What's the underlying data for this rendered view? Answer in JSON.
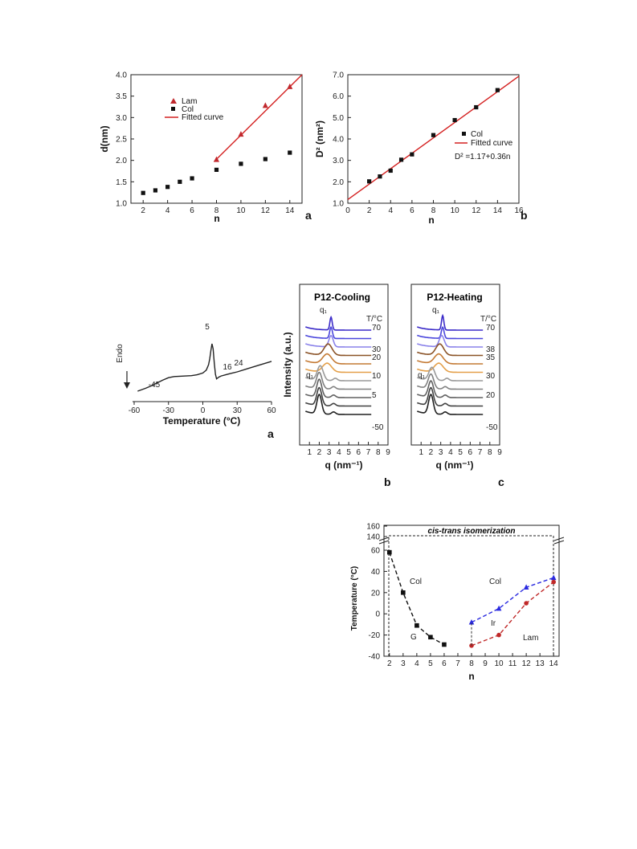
{
  "colors": {
    "lam": "#c0282d",
    "col": "#111111",
    "fit": "#d42020",
    "blue": "#2a2ae0",
    "red": "#c02828",
    "grid": "#555555"
  },
  "chart_data": [
    {
      "id": "fig1a",
      "type": "scatter",
      "panel": "a",
      "xlabel": "n",
      "ylabel": "d(nm)",
      "xlim": [
        1,
        15
      ],
      "ylim": [
        1.0,
        4.0
      ],
      "xticks": [
        2,
        4,
        6,
        8,
        10,
        12,
        14
      ],
      "yticks": [
        "1.0",
        "1.5",
        "2.0",
        "2.5",
        "3.0",
        "3.5",
        "4.0"
      ],
      "legend": {
        "position": "top-left",
        "entries": [
          "Lam",
          "Col",
          "Fitted curve"
        ]
      },
      "series": [
        {
          "name": "Lam",
          "marker": "triangle",
          "x": [
            8,
            10,
            12,
            14
          ],
          "y": [
            2.02,
            2.61,
            3.28,
            3.72
          ]
        },
        {
          "name": "Col",
          "marker": "square",
          "x": [
            2,
            3,
            4,
            5,
            6,
            8,
            10,
            12,
            14
          ],
          "y": [
            1.24,
            1.3,
            1.38,
            1.5,
            1.58,
            1.78,
            1.92,
            2.03,
            2.18
          ]
        },
        {
          "name": "Fitted curve",
          "marker": "line",
          "x": [
            7.8,
            15
          ],
          "y": [
            1.97,
            4.0
          ]
        }
      ]
    },
    {
      "id": "fig1b",
      "type": "scatter",
      "panel": "b",
      "xlabel": "n",
      "ylabel": "D² (nm²)",
      "xlim": [
        0,
        16
      ],
      "ylim": [
        1.0,
        7.0
      ],
      "xticks": [
        0,
        2,
        4,
        6,
        8,
        10,
        12,
        14,
        16
      ],
      "yticks": [
        "1.0",
        "2.0",
        "3.0",
        "4.0",
        "5.0",
        "6.0",
        "7.0"
      ],
      "legend": {
        "position": "center-right",
        "entries": [
          "Col",
          "Fitted curve"
        ]
      },
      "annotation": "D² =1.17+0.36n",
      "series": [
        {
          "name": "Col",
          "marker": "square",
          "x": [
            2,
            3,
            4,
            5,
            6,
            8,
            10,
            12,
            14
          ],
          "y": [
            2.02,
            2.25,
            2.52,
            3.03,
            3.28,
            4.18,
            4.88,
            5.48,
            6.28
          ]
        },
        {
          "name": "Fitted curve",
          "marker": "line",
          "x": [
            0,
            16
          ],
          "y": [
            1.17,
            6.93
          ]
        }
      ]
    },
    {
      "id": "fig2a",
      "type": "line",
      "panel": "a",
      "xlabel": "Temperature (°C)",
      "ylabel": "Endo",
      "xlim": [
        -60,
        60
      ],
      "xticks": [
        "-60",
        "-30",
        "0",
        "30",
        "60"
      ],
      "peak_labels": [
        "-45",
        "5",
        "16",
        "24"
      ],
      "curve": {
        "x": [
          -57,
          -50,
          -45,
          -40,
          -35,
          -30,
          -25,
          -20,
          -15,
          -10,
          -5,
          0,
          3,
          5,
          6,
          7,
          8,
          9,
          10,
          11,
          12,
          13,
          14,
          16,
          20,
          24,
          30,
          40,
          50,
          60
        ],
        "y": [
          0.0,
          0.1,
          0.18,
          0.28,
          0.38,
          0.46,
          0.5,
          0.51,
          0.52,
          0.53,
          0.56,
          0.62,
          0.72,
          0.9,
          1.1,
          1.38,
          1.62,
          1.45,
          0.95,
          0.58,
          0.42,
          0.45,
          0.48,
          0.52,
          0.56,
          0.6,
          0.66,
          0.78,
          0.9,
          1.02
        ]
      }
    },
    {
      "id": "fig2b",
      "type": "line",
      "panel": "b",
      "title": "P12-Cooling",
      "xlabel": "q (nm⁻¹)",
      "ylabel": "Intensity (a.u.)",
      "xlim": [
        0,
        9
      ],
      "xticks": [
        "1",
        "2",
        "3",
        "4",
        "5",
        "6",
        "7",
        "8",
        "9"
      ],
      "temp_header": "T/°C",
      "temp_labels": [
        "70",
        "30",
        "20",
        "10",
        "5",
        "-50"
      ],
      "peak_labels": [
        "q₁",
        "q₁"
      ],
      "curves": [
        {
          "color": "#3a2ac8",
          "peak": 3.2,
          "height": 16,
          "width": 0.12
        },
        {
          "color": "#4a46dc",
          "peak": 3.2,
          "height": 14,
          "width": 0.14
        },
        {
          "color": "#8a82ea",
          "peak": 3.2,
          "height": 14,
          "width": 0.22
        },
        {
          "color": "#8a5226",
          "peak": 2.9,
          "height": 14,
          "width": 0.4
        },
        {
          "color": "#c47a34",
          "peak": 2.8,
          "height": 12,
          "width": 0.45
        },
        {
          "color": "#e4a04a",
          "peak": 2.8,
          "height": 11,
          "width": 0.45
        },
        {
          "color": "#9a9a9a",
          "peak": 2.1,
          "height": 18,
          "width": 0.3
        },
        {
          "color": "#808080",
          "peak": 2.0,
          "height": 20,
          "width": 0.28
        },
        {
          "color": "#606060",
          "peak": 2.0,
          "height": 22,
          "width": 0.25
        },
        {
          "color": "#404040",
          "peak": 2.0,
          "height": 22,
          "width": 0.25
        },
        {
          "color": "#202020",
          "peak": 2.0,
          "height": 24,
          "width": 0.24
        }
      ]
    },
    {
      "id": "fig2c",
      "type": "line",
      "panel": "c",
      "title": "P12-Heating",
      "xlabel": "q (nm⁻¹)",
      "xlim": [
        0,
        9
      ],
      "xticks": [
        "1",
        "2",
        "3",
        "4",
        "5",
        "6",
        "7",
        "8",
        "9"
      ],
      "temp_header": "T/°C",
      "temp_labels": [
        "70",
        "38",
        "35",
        "30",
        "20",
        "-50"
      ],
      "peak_labels": [
        "q₁",
        "q₁"
      ],
      "curves": [
        {
          "color": "#3a2ac8",
          "peak": 3.2,
          "height": 18,
          "width": 0.12
        },
        {
          "color": "#4a46dc",
          "peak": 3.2,
          "height": 14,
          "width": 0.14
        },
        {
          "color": "#8a82ea",
          "peak": 3.1,
          "height": 14,
          "width": 0.25
        },
        {
          "color": "#8a5226",
          "peak": 2.9,
          "height": 14,
          "width": 0.4
        },
        {
          "color": "#c47a34",
          "peak": 2.8,
          "height": 12,
          "width": 0.45
        },
        {
          "color": "#e4a04a",
          "peak": 2.8,
          "height": 11,
          "width": 0.45
        },
        {
          "color": "#9a9a9a",
          "peak": 2.1,
          "height": 16,
          "width": 0.3
        },
        {
          "color": "#808080",
          "peak": 2.0,
          "height": 18,
          "width": 0.28
        },
        {
          "color": "#606060",
          "peak": 2.0,
          "height": 20,
          "width": 0.26
        },
        {
          "color": "#404040",
          "peak": 2.0,
          "height": 22,
          "width": 0.25
        },
        {
          "color": "#202020",
          "peak": 2.0,
          "height": 24,
          "width": 0.24
        }
      ]
    },
    {
      "id": "fig3",
      "type": "line",
      "title": "cis-trans isomerization",
      "xlabel": "n",
      "ylabel": "Temperature (°C)",
      "xlim": [
        1.6,
        14.4
      ],
      "ylim": [
        -40,
        60
      ],
      "xticks": [
        2,
        3,
        4,
        5,
        6,
        7,
        8,
        9,
        10,
        11,
        12,
        13,
        14
      ],
      "yticks": [
        -40,
        -20,
        0,
        20,
        40,
        60
      ],
      "ybreak_ticks": [
        "140",
        "160"
      ],
      "region_labels": [
        "Col",
        "G",
        "Col",
        "Ir",
        "Lam"
      ],
      "series": [
        {
          "color": "black",
          "marker": "square",
          "x": [
            2,
            3,
            4,
            5,
            6
          ],
          "y": [
            58,
            20,
            -11,
            -22,
            -29
          ]
        },
        {
          "color": "blue",
          "marker": "triangle",
          "x": [
            8,
            10,
            12,
            14
          ],
          "y": [
            -8,
            5,
            25,
            34
          ]
        },
        {
          "color": "red",
          "marker": "circle",
          "x": [
            8,
            10,
            12,
            14
          ],
          "y": [
            -30,
            -20,
            10,
            30
          ]
        }
      ]
    }
  ]
}
